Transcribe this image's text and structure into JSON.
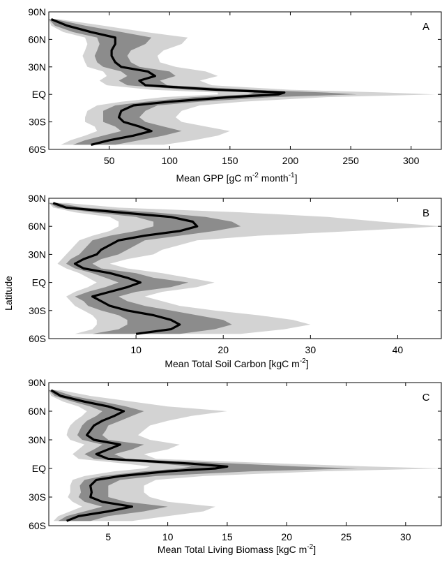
{
  "figure": {
    "ylabel": "Latitude"
  },
  "chart_data": [
    {
      "panel": "A",
      "type": "area",
      "xlabel": {
        "main": "Mean GPP [gC m",
        "sup1": "-2",
        "mid": " month",
        "sup2": "-1",
        "end": "]"
      },
      "xlim": [
        0,
        325
      ],
      "xticks": [
        "50",
        "100",
        "150",
        "200",
        "250",
        "300"
      ],
      "ylim": [
        -60,
        90
      ],
      "yticks": [
        "90N",
        "60N",
        "30N",
        "EQ",
        "30S",
        "60S"
      ],
      "lat": [
        82,
        75,
        68,
        62,
        55,
        48,
        42,
        35,
        30,
        25,
        20,
        15,
        10,
        5,
        2,
        0,
        -3,
        -8,
        -12,
        -18,
        -25,
        -30,
        -35,
        -40,
        -45,
        -50,
        -55
      ],
      "mean": [
        2,
        15,
        35,
        55,
        55,
        52,
        52,
        55,
        60,
        82,
        88,
        75,
        80,
        140,
        195,
        190,
        150,
        100,
        70,
        60,
        58,
        62,
        75,
        85,
        70,
        50,
        35
      ],
      "inner": {
        "lo": [
          0,
          5,
          20,
          40,
          42,
          40,
          38,
          40,
          45,
          60,
          65,
          58,
          65,
          115,
          170,
          165,
          120,
          80,
          55,
          45,
          45,
          45,
          55,
          60,
          45,
          30,
          20
        ],
        "hi": [
          5,
          30,
          60,
          85,
          80,
          68,
          65,
          68,
          75,
          100,
          105,
          92,
          98,
          170,
          230,
          255,
          185,
          125,
          90,
          80,
          75,
          80,
          95,
          110,
          95,
          75,
          55
        ]
      },
      "outer": {
        "lo": [
          0,
          2,
          12,
          30,
          32,
          30,
          28,
          30,
          32,
          45,
          48,
          42,
          48,
          85,
          140,
          140,
          95,
          60,
          40,
          32,
          30,
          30,
          38,
          40,
          30,
          18,
          10
        ],
        "hi": [
          8,
          45,
          80,
          115,
          110,
          95,
          90,
          92,
          105,
          130,
          140,
          125,
          135,
          200,
          280,
          320,
          230,
          160,
          125,
          110,
          105,
          110,
          130,
          150,
          140,
          120,
          95
        ]
      }
    },
    {
      "panel": "B",
      "type": "area",
      "xlabel": {
        "main": "Mean Total Soil Carbon [kgC m",
        "sup1": "-2",
        "end": "]"
      },
      "xlim": [
        0,
        45
      ],
      "xticks": [
        "10",
        "20",
        "30",
        "40"
      ],
      "ylim": [
        -60,
        90
      ],
      "yticks": [
        "90N",
        "60N",
        "30N",
        "EQ",
        "30S",
        "60S"
      ],
      "lat": [
        85,
        80,
        75,
        70,
        65,
        60,
        55,
        50,
        45,
        40,
        35,
        30,
        25,
        20,
        15,
        10,
        5,
        0,
        -5,
        -10,
        -15,
        -20,
        -25,
        -30,
        -35,
        -40,
        -45,
        -50,
        -55
      ],
      "mean": [
        0.5,
        2,
        8,
        14,
        16.5,
        17,
        15,
        11,
        8,
        7,
        6,
        5.5,
        4,
        3,
        4,
        7,
        9,
        10.5,
        9,
        7,
        5,
        6,
        7,
        9,
        12,
        14,
        15,
        14,
        10
      ],
      "inner": {
        "lo": [
          0,
          1,
          5,
          10,
          12,
          12,
          10,
          7,
          5,
          4.5,
          4,
          3.5,
          2.5,
          2,
          3,
          5,
          6.5,
          8,
          6.5,
          4.5,
          3,
          4,
          4.5,
          6,
          8,
          9,
          9,
          8,
          5
        ],
        "hi": [
          1,
          4,
          12,
          18,
          21,
          22,
          19,
          15,
          11,
          10,
          9,
          8,
          6,
          5,
          6,
          10,
          12,
          16,
          14,
          10,
          8,
          9,
          11,
          14,
          17,
          20,
          21,
          19,
          15
        ]
      },
      "outer": {
        "lo": [
          0,
          0.5,
          3,
          7,
          8,
          8,
          7,
          5,
          3.5,
          3,
          2.5,
          2,
          1.5,
          1,
          2,
          3.5,
          4.5,
          5.5,
          4.5,
          3,
          2,
          2.5,
          3,
          4,
          5,
          5.5,
          5.5,
          5,
          3
        ],
        "hi": [
          2,
          8,
          22,
          32,
          38,
          45,
          35,
          24,
          17,
          15,
          13,
          12,
          9,
          7,
          9,
          13,
          16,
          19,
          17,
          13,
          11,
          13,
          15,
          19,
          24,
          28,
          30,
          27,
          22
        ]
      }
    },
    {
      "panel": "C",
      "type": "area",
      "xlabel": {
        "main": "Mean Total Living Biomass [kgC m",
        "sup1": "-2",
        "end": "]"
      },
      "xlim": [
        0,
        33
      ],
      "xticks": [
        "5",
        "10",
        "15",
        "20",
        "25",
        "30"
      ],
      "ylim": [
        -60,
        90
      ],
      "yticks": [
        "90N",
        "60N",
        "30N",
        "EQ",
        "30S",
        "60S"
      ],
      "lat": [
        82,
        76,
        70,
        65,
        60,
        55,
        50,
        45,
        40,
        35,
        30,
        25,
        20,
        15,
        10,
        5,
        2,
        0,
        -3,
        -8,
        -12,
        -18,
        -25,
        -30,
        -35,
        -40,
        -45,
        -50,
        -55
      ],
      "mean": [
        0.2,
        1,
        3,
        5,
        6.3,
        5.5,
        4.5,
        3.8,
        3.5,
        3.2,
        3.8,
        6,
        5,
        4,
        5,
        12,
        15,
        14,
        10,
        6,
        4,
        3.5,
        3.6,
        3.5,
        4.5,
        7,
        5,
        2.5,
        1.5
      ],
      "inner": {
        "lo": [
          0,
          0.5,
          2,
          3.5,
          4.5,
          4,
          3.2,
          2.8,
          2.6,
          2.4,
          2.8,
          4.5,
          3.8,
          3,
          3.8,
          9.5,
          12,
          11,
          8,
          4.5,
          3,
          2.6,
          2.7,
          2.5,
          3,
          4.5,
          3,
          1.5,
          0.8
        ],
        "hi": [
          0.5,
          2,
          4.5,
          6.5,
          8,
          7,
          6,
          5,
          4.8,
          4.5,
          5,
          8,
          7,
          5.5,
          6.5,
          16,
          21,
          26,
          17,
          9,
          6,
          5,
          5,
          5,
          6.5,
          10,
          8,
          5,
          3.5
        ]
      },
      "outer": {
        "lo": [
          0,
          0.2,
          1.2,
          2.5,
          3.2,
          2.8,
          2.2,
          1.8,
          1.6,
          1.5,
          1.8,
          3,
          2.5,
          2,
          2.5,
          6.5,
          8.5,
          8,
          5.5,
          3,
          2,
          1.8,
          1.8,
          1.6,
          2,
          2.8,
          1.8,
          0.8,
          0.4
        ],
        "hi": [
          1,
          3.5,
          7,
          10,
          15,
          12,
          10,
          8.5,
          8,
          7.5,
          8.5,
          11,
          10,
          8,
          9,
          20,
          27,
          33,
          23,
          13,
          9,
          8,
          8,
          8.5,
          10,
          14,
          13,
          10,
          7
        ]
      }
    }
  ],
  "style": {
    "outer_band": "#d3d3d3",
    "inner_band": "#8c8c8c",
    "mean_line": "#000000",
    "axis": "#000000"
  }
}
